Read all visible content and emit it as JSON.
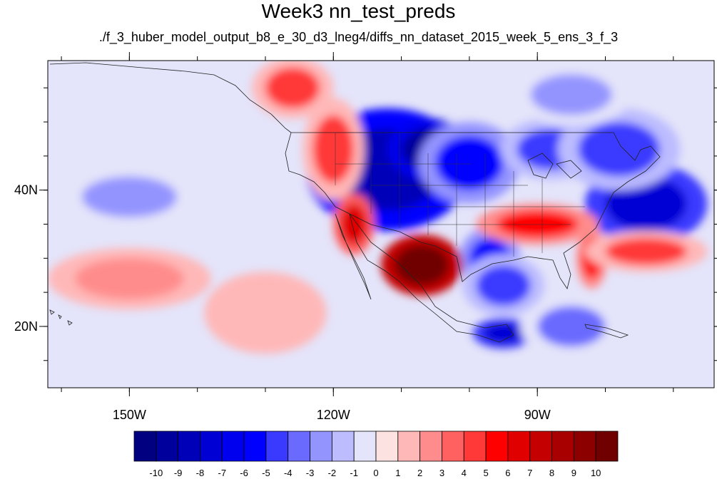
{
  "title": "Week3 nn_test_preds",
  "subtitle": "./f_3_huber_model_output_b8_e_30_d3_lneg4/diffs_nn_dataset_2015_week_5_ens_3_f_3",
  "map": {
    "lon_range": [
      -162,
      -64
    ],
    "lat_range": [
      11,
      59
    ],
    "x_ticks": [
      {
        "lon": -150,
        "label": "150W"
      },
      {
        "lon": -120,
        "label": "120W"
      },
      {
        "lon": -90,
        "label": "90W"
      }
    ],
    "y_ticks": [
      {
        "lat": 20,
        "label": "20N"
      },
      {
        "lat": 40,
        "label": "40N"
      }
    ],
    "x_minor_ticks": [
      -160,
      -150,
      -140,
      -130,
      -120,
      -110,
      -100,
      -90,
      -80,
      -70
    ],
    "y_minor_ticks": [
      15,
      20,
      25,
      30,
      35,
      40,
      45,
      50,
      55
    ]
  },
  "colorbar": {
    "levels": [
      "-10",
      "-9",
      "-8",
      "-7",
      "-6",
      "-5",
      "-4",
      "-3",
      "-2",
      "-1",
      "0",
      "1",
      "2",
      "3",
      "4",
      "5",
      "6",
      "7",
      "8",
      "9",
      "10"
    ],
    "colors": [
      "#000080",
      "#00009c",
      "#0000b8",
      "#0000d4",
      "#0000ee",
      "#0000ff",
      "#3a3aff",
      "#6a6aff",
      "#9494ff",
      "#bcbcff",
      "#e4e4fa",
      "#fde2e2",
      "#ffb8b8",
      "#ff8c8c",
      "#ff6060",
      "#ff3838",
      "#ff0000",
      "#e00000",
      "#c40000",
      "#a80000",
      "#8c0000",
      "#700000"
    ]
  },
  "field": [
    {
      "lon": -112,
      "lat": 43,
      "v": -9,
      "rx": 8,
      "ry": 6
    },
    {
      "lon": -106,
      "lat": 46,
      "v": -10,
      "rx": 4,
      "ry": 3
    },
    {
      "lon": -100,
      "lat": 44,
      "v": -6,
      "rx": 5,
      "ry": 4
    },
    {
      "lon": -74,
      "lat": 38,
      "v": -8,
      "rx": 6,
      "ry": 4
    },
    {
      "lon": -88,
      "lat": 46,
      "v": -5,
      "rx": 5,
      "ry": 3
    },
    {
      "lon": -78,
      "lat": 46,
      "v": -5,
      "rx": 6,
      "ry": 4
    },
    {
      "lon": -97,
      "lat": 30,
      "v": -6,
      "rx": 3,
      "ry": 3
    },
    {
      "lon": -95,
      "lat": 26,
      "v": -5,
      "rx": 4,
      "ry": 3
    },
    {
      "lon": -95,
      "lat": 19,
      "v": -8,
      "rx": 3,
      "ry": 1.5
    },
    {
      "lon": -85,
      "lat": 20,
      "v": -4,
      "rx": 5,
      "ry": 3
    },
    {
      "lon": -150,
      "lat": 39,
      "v": -3,
      "rx": 7,
      "ry": 3
    },
    {
      "lon": -85,
      "lat": 54,
      "v": -3,
      "rx": 6,
      "ry": 3
    },
    {
      "lon": -107,
      "lat": 29,
      "v": 10,
      "rx": 4,
      "ry": 3
    },
    {
      "lon": -117,
      "lat": 35,
      "v": 6,
      "rx": 2,
      "ry": 3
    },
    {
      "lon": -120,
      "lat": 46,
      "v": 4,
      "rx": 3,
      "ry": 5
    },
    {
      "lon": -126,
      "lat": 55,
      "v": 4,
      "rx": 4,
      "ry": 3
    },
    {
      "lon": -90,
      "lat": 35,
      "v": 5,
      "rx": 6,
      "ry": 2
    },
    {
      "lon": -82,
      "lat": 30,
      "v": 5,
      "rx": 1.5,
      "ry": 3
    },
    {
      "lon": -74,
      "lat": 31,
      "v": 4,
      "rx": 6,
      "ry": 2
    },
    {
      "lon": -150,
      "lat": 27,
      "v": 2,
      "rx": 8,
      "ry": 3
    },
    {
      "lon": -130,
      "lat": 22,
      "v": 1,
      "rx": 6,
      "ry": 4
    }
  ]
}
